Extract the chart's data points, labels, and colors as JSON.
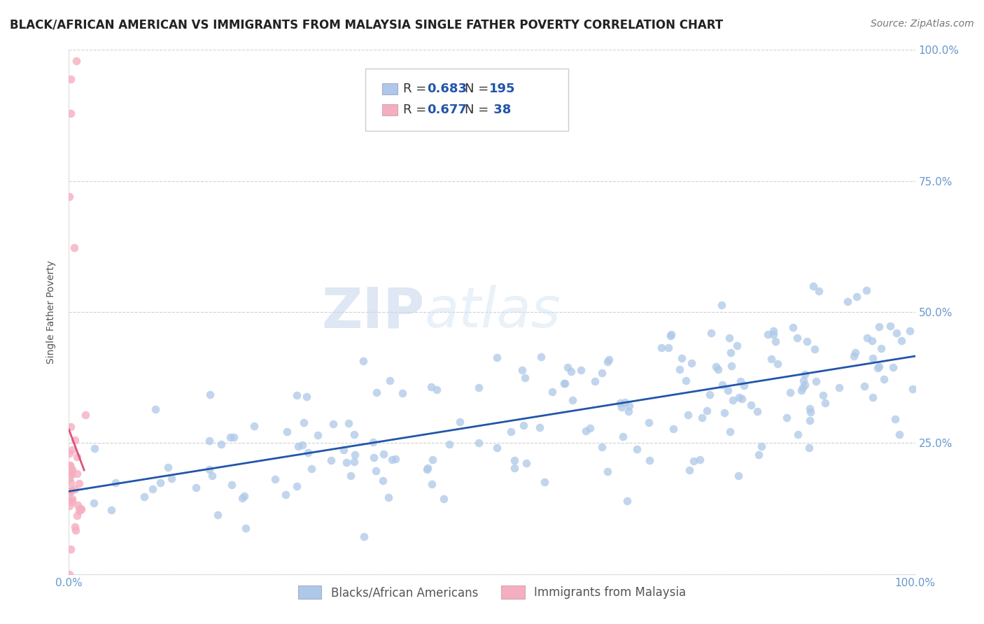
{
  "title": "BLACK/AFRICAN AMERICAN VS IMMIGRANTS FROM MALAYSIA SINGLE FATHER POVERTY CORRELATION CHART",
  "source": "Source: ZipAtlas.com",
  "ylabel": "Single Father Poverty",
  "blue_R": 0.683,
  "blue_N": 195,
  "pink_R": 0.677,
  "pink_N": 38,
  "blue_color": "#adc8e8",
  "blue_line_color": "#2255aa",
  "pink_color": "#f5aec0",
  "pink_line_color": "#e0507a",
  "legend_label_blue": "Blacks/African Americans",
  "legend_label_pink": "Immigrants from Malaysia",
  "background_color": "#ffffff",
  "watermark_zip": "ZIP",
  "watermark_atlas": "atlas",
  "tick_color": "#6699cc",
  "seed": 99,
  "xlim": [
    0,
    1.0
  ],
  "ylim": [
    0,
    1.0
  ],
  "x_ticks": [
    0.0,
    0.25,
    0.5,
    0.75,
    1.0
  ],
  "y_ticks": [
    0.0,
    0.25,
    0.5,
    0.75,
    1.0
  ],
  "x_tick_labels": [
    "0.0%",
    "",
    "",
    "",
    "100.0%"
  ],
  "y_tick_labels_right": [
    "",
    "25.0%",
    "50.0%",
    "75.0%",
    "100.0%"
  ],
  "title_fontsize": 12,
  "source_fontsize": 10,
  "axis_label_fontsize": 10,
  "tick_fontsize": 11,
  "legend_fontsize": 12
}
